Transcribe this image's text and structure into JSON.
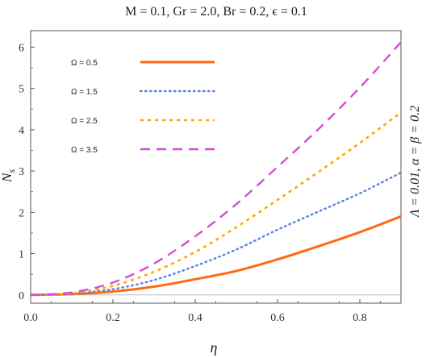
{
  "chart_data": {
    "type": "line",
    "title": "M = 0.1, Gr = 2.0, Br = 0.2, ϵ = 0.1",
    "xlabel": "η",
    "ylabel_main": "N",
    "ylabel_sub": "s",
    "side_label": "Λ = 0.01,  α = β = 0.2",
    "xlim": [
      0.0,
      0.9
    ],
    "ylim": [
      -0.2,
      6.4
    ],
    "xticks": [
      0.0,
      0.2,
      0.4,
      0.6,
      0.8
    ],
    "xtick_labels": [
      "0.0",
      "0.2",
      "0.4",
      "0.6",
      "0.8"
    ],
    "yticks": [
      0,
      1,
      2,
      3,
      4,
      5,
      6
    ],
    "ytick_labels": [
      "0",
      "1",
      "2",
      "3",
      "4",
      "5",
      "6"
    ],
    "grid": false,
    "legend_position": "top-left",
    "x": [
      0.0,
      0.1,
      0.2,
      0.3,
      0.4,
      0.5,
      0.6,
      0.7,
      0.8,
      0.9
    ],
    "series": [
      {
        "name": "Ω = 0.5",
        "color": "#ff6a10",
        "dash": "solid",
        "values": [
          0.0,
          0.02,
          0.08,
          0.2,
          0.38,
          0.58,
          0.86,
          1.18,
          1.52,
          1.9
        ]
      },
      {
        "name": "Ω = 1.5",
        "color": "#5b7fe0",
        "dash": "dotted",
        "values": [
          0.0,
          0.03,
          0.14,
          0.36,
          0.7,
          1.1,
          1.58,
          2.02,
          2.46,
          2.96
        ]
      },
      {
        "name": "Ω = 2.5",
        "color": "#ffa800",
        "dash": "dashed-short",
        "values": [
          0.0,
          0.04,
          0.22,
          0.56,
          1.04,
          1.64,
          2.3,
          2.98,
          3.68,
          4.42
        ]
      },
      {
        "name": "Ω = 3.5",
        "color": "#d24fd3",
        "dash": "dashed-long",
        "values": [
          0.0,
          0.06,
          0.3,
          0.76,
          1.42,
          2.2,
          3.1,
          4.02,
          5.02,
          6.12
        ]
      }
    ]
  }
}
